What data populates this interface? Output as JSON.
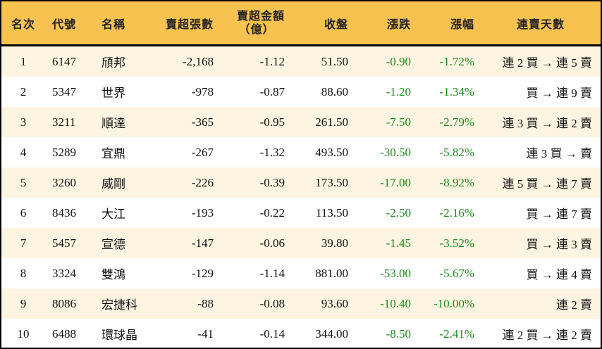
{
  "header": {
    "rank": "名次",
    "code": "代號",
    "name": "名稱",
    "sell_lots": "賣超張數",
    "sell_amount_line1": "賣超金額",
    "sell_amount_line2": "（億）",
    "close": "收盤",
    "change": "漲跌",
    "change_pct": "漲幅",
    "streak": "連賣天數"
  },
  "colors": {
    "header_bg": "#F7C24F",
    "stripe_bg": "#FDF5E2",
    "negative": "#1a8a1a"
  },
  "rows": [
    {
      "rank": "1",
      "code": "6147",
      "name": "頎邦",
      "sell_lots": "-2,168",
      "sell_amount": "-1.12",
      "close": "51.50",
      "change": "-0.90",
      "change_pct": "-1.72%",
      "streak": "連 2 買 → 連 5 賣"
    },
    {
      "rank": "2",
      "code": "5347",
      "name": "世界",
      "sell_lots": "-978",
      "sell_amount": "-0.87",
      "close": "88.60",
      "change": "-1.20",
      "change_pct": "-1.34%",
      "streak": "買 → 連 9 賣"
    },
    {
      "rank": "3",
      "code": "3211",
      "name": "順達",
      "sell_lots": "-365",
      "sell_amount": "-0.95",
      "close": "261.50",
      "change": "-7.50",
      "change_pct": "-2.79%",
      "streak": "連 3 買 → 連 2 賣"
    },
    {
      "rank": "4",
      "code": "5289",
      "name": "宜鼎",
      "sell_lots": "-267",
      "sell_amount": "-1.32",
      "close": "493.50",
      "change": "-30.50",
      "change_pct": "-5.82%",
      "streak": "連 3 買 → 賣"
    },
    {
      "rank": "5",
      "code": "3260",
      "name": "威剛",
      "sell_lots": "-226",
      "sell_amount": "-0.39",
      "close": "173.50",
      "change": "-17.00",
      "change_pct": "-8.92%",
      "streak": "連 5 買 → 連 7 賣"
    },
    {
      "rank": "6",
      "code": "8436",
      "name": "大江",
      "sell_lots": "-193",
      "sell_amount": "-0.22",
      "close": "113.50",
      "change": "-2.50",
      "change_pct": "-2.16%",
      "streak": "買 → 連 7 賣"
    },
    {
      "rank": "7",
      "code": "5457",
      "name": "宣德",
      "sell_lots": "-147",
      "sell_amount": "-0.06",
      "close": "39.80",
      "change": "-1.45",
      "change_pct": "-3.52%",
      "streak": "買 → 連 3 賣"
    },
    {
      "rank": "8",
      "code": "3324",
      "name": "雙鴻",
      "sell_lots": "-129",
      "sell_amount": "-1.14",
      "close": "881.00",
      "change": "-53.00",
      "change_pct": "-5.67%",
      "streak": "買 → 連 4 賣"
    },
    {
      "rank": "9",
      "code": "8086",
      "name": "宏捷科",
      "sell_lots": "-88",
      "sell_amount": "-0.08",
      "close": "93.60",
      "change": "-10.40",
      "change_pct": "-10.00%",
      "streak": "連 2 賣"
    },
    {
      "rank": "10",
      "code": "6488",
      "name": "環球晶",
      "sell_lots": "-41",
      "sell_amount": "-0.14",
      "close": "344.00",
      "change": "-8.50",
      "change_pct": "-2.41%",
      "streak": "連 2 買 → 連 2 賣"
    }
  ]
}
